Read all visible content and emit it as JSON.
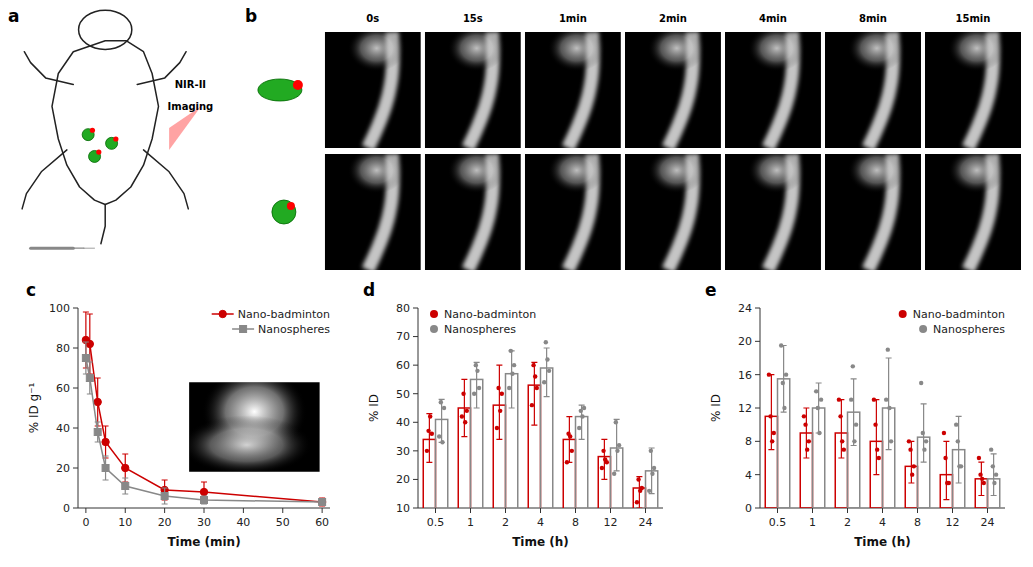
{
  "chart_data": [
    {
      "type": "illustration",
      "title": "a",
      "annotations": [
        "NIR-II",
        "Imaging"
      ]
    },
    {
      "type": "image_grid",
      "title": "b",
      "categories": [
        "0s",
        "15s",
        "1min",
        "2min",
        "4min",
        "8min",
        "15min"
      ]
    },
    {
      "type": "line",
      "title": "c",
      "xlabel": "Time (min)",
      "ylabel": "% ID g⁻¹",
      "x": [
        0,
        1,
        3,
        5,
        10,
        20,
        30,
        60
      ],
      "series": [
        {
          "name": "Nano-badminton",
          "color": "#CC0000",
          "marker": "circle",
          "values": [
            84,
            82,
            53,
            33,
            20,
            9,
            8,
            3
          ],
          "error": [
            14,
            15,
            12,
            8,
            7,
            5,
            5,
            2
          ]
        },
        {
          "name": "Nanospheres",
          "color": "#888888",
          "marker": "square",
          "values": [
            75,
            65,
            38,
            20,
            11,
            6,
            4,
            3
          ],
          "error": [
            8,
            8,
            5,
            6,
            4,
            4,
            2,
            1
          ]
        }
      ],
      "xlim": [
        -2,
        62
      ],
      "xticks": [
        0,
        10,
        20,
        30,
        40,
        50,
        60
      ],
      "ylim": [
        0,
        100
      ],
      "yticks": [
        0,
        20,
        40,
        60,
        80,
        100
      ],
      "legend": "upper right"
    },
    {
      "type": "bar",
      "title": "d",
      "xlabel": "Time (h)",
      "ylabel": "% ID",
      "categories": [
        "0.5",
        "1",
        "2",
        "4",
        "8",
        "12",
        "24"
      ],
      "series": [
        {
          "name": "Nano-badminton",
          "color": "#CC0000",
          "values": [
            34,
            45,
            46,
            53,
            34,
            28,
            17
          ],
          "error_low": [
            8,
            10,
            12,
            14,
            8,
            8,
            7
          ],
          "error_high": [
            9,
            10,
            14,
            8,
            8,
            6,
            4
          ],
          "points": [
            [
              30,
              37,
              42,
              36
            ],
            [
              42,
              50,
              40,
              44
            ],
            [
              38,
              52,
              44,
              50
            ],
            [
              46,
              60,
              56,
              52
            ],
            [
              26,
              36,
              35,
              30
            ],
            [
              24,
              30,
              27,
              26
            ],
            [
              12,
              20,
              16,
              17
            ]
          ]
        },
        {
          "name": "Nanospheres",
          "color": "#888888",
          "values": [
            41,
            55,
            57,
            59,
            42,
            31,
            23
          ],
          "error_low": [
            8,
            10,
            12,
            10,
            8,
            8,
            8
          ],
          "error_high": [
            7,
            6,
            8,
            7,
            4,
            10,
            8
          ],
          "points": [
            [
              35,
              47,
              33,
              45
            ],
            [
              50,
              60,
              58,
              52
            ],
            [
              52,
              65,
              57,
              60
            ],
            [
              54,
              68,
              62,
              58
            ],
            [
              38,
              44,
              42,
              45
            ],
            [
              22,
              40,
              30,
              32
            ],
            [
              16,
              30,
              22,
              24
            ]
          ]
        }
      ],
      "ylim": [
        10,
        80
      ],
      "yticks": [
        10,
        20,
        30,
        40,
        50,
        60,
        70,
        80
      ],
      "legend": "upper left"
    },
    {
      "type": "bar",
      "title": "e",
      "xlabel": "Time (h)",
      "ylabel": "% ID",
      "categories": [
        "0.5",
        "1",
        "2",
        "4",
        "8",
        "12",
        "24"
      ],
      "series": [
        {
          "name": "Nano-badminton",
          "color": "#CC0000",
          "values": [
            11,
            9,
            9,
            8,
            5,
            4,
            3.5
          ],
          "error_low": [
            4,
            3,
            3,
            4,
            2,
            3,
            2
          ],
          "error_high": [
            5,
            3,
            4,
            5,
            3,
            4,
            2
          ],
          "points": [
            [
              16,
              11,
              8,
              9
            ],
            [
              11,
              10,
              7,
              8
            ],
            [
              13,
              11,
              8,
              7
            ],
            [
              13,
              10,
              7,
              6
            ],
            [
              8,
              7,
              4,
              5
            ],
            [
              9,
              6,
              3,
              3
            ],
            [
              6,
              4,
              3.5,
              3
            ]
          ]
        },
        {
          "name": "Nanospheres",
          "color": "#888888",
          "values": [
            15.5,
            12,
            11.5,
            12,
            8.5,
            7,
            3.5
          ],
          "error_low": [
            4,
            3,
            4,
            5,
            3,
            4,
            2
          ],
          "error_high": [
            4,
            3,
            4,
            6,
            4,
            4,
            3
          ],
          "points": [
            [
              19.5,
              15,
              12,
              16
            ],
            [
              14,
              12,
              9,
              13
            ],
            [
              13,
              17,
              8,
              10
            ],
            [
              13,
              19,
              12,
              8
            ],
            [
              15,
              9,
              7,
              8
            ],
            [
              10,
              8,
              5,
              5
            ],
            [
              7,
              5,
              3,
              4
            ]
          ]
        }
      ],
      "ylim": [
        0,
        24
      ],
      "yticks": [
        0,
        4,
        8,
        12,
        16,
        20,
        24
      ],
      "legend": "upper right"
    }
  ]
}
